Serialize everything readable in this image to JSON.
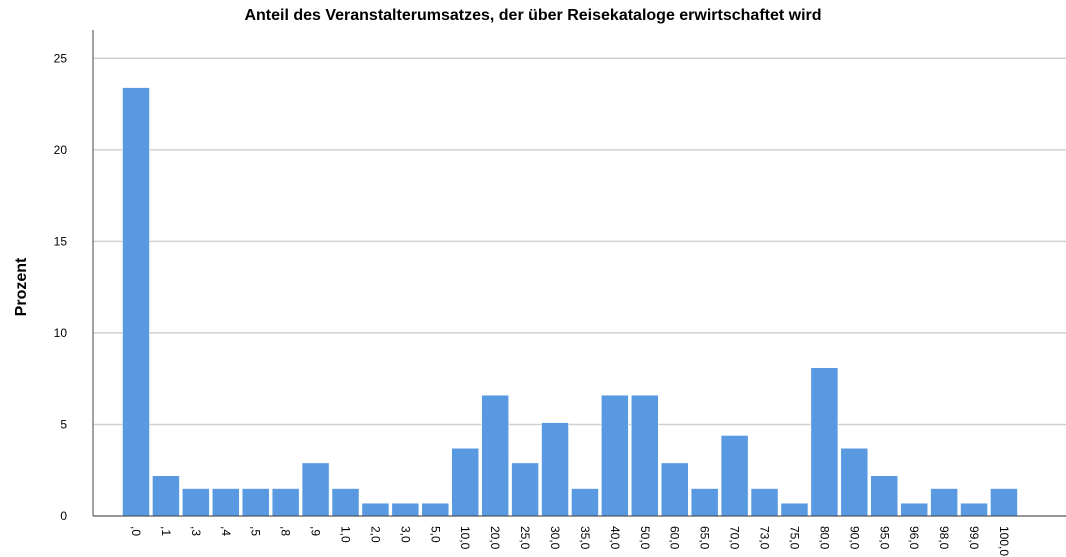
{
  "chart_data": {
    "type": "bar",
    "title": "Anteil des Veranstalterumsatzes, der über Reisekataloge erwirtschaftet wird",
    "y_label": "Prozent",
    "categories": [
      ",0",
      ",1",
      ",3",
      ",4",
      ",5",
      ",8",
      ",9",
      "1,0",
      "2,0",
      "3,0",
      "5,0",
      "10,0",
      "20,0",
      "25,0",
      "30,0",
      "35,0",
      "40,0",
      "50,0",
      "60,0",
      "65,0",
      "70,0",
      "73,0",
      "75,0",
      "80,0",
      "90,0",
      "95,0",
      "96,0",
      "98,0",
      "99,0",
      "100,0"
    ],
    "values": [
      23.4,
      2.2,
      1.5,
      1.5,
      1.5,
      1.5,
      2.9,
      1.5,
      0.7,
      0.7,
      0.7,
      3.7,
      6.6,
      2.9,
      5.1,
      1.5,
      6.6,
      6.6,
      2.9,
      1.5,
      4.4,
      1.5,
      0.7,
      8.1,
      3.7,
      2.2,
      0.7,
      1.5,
      0.7,
      1.5
    ],
    "color": "#5899e2",
    "ylim": [
      0,
      26
    ],
    "yticks": [
      0,
      5,
      10,
      15,
      20,
      25
    ],
    "grid": true
  }
}
